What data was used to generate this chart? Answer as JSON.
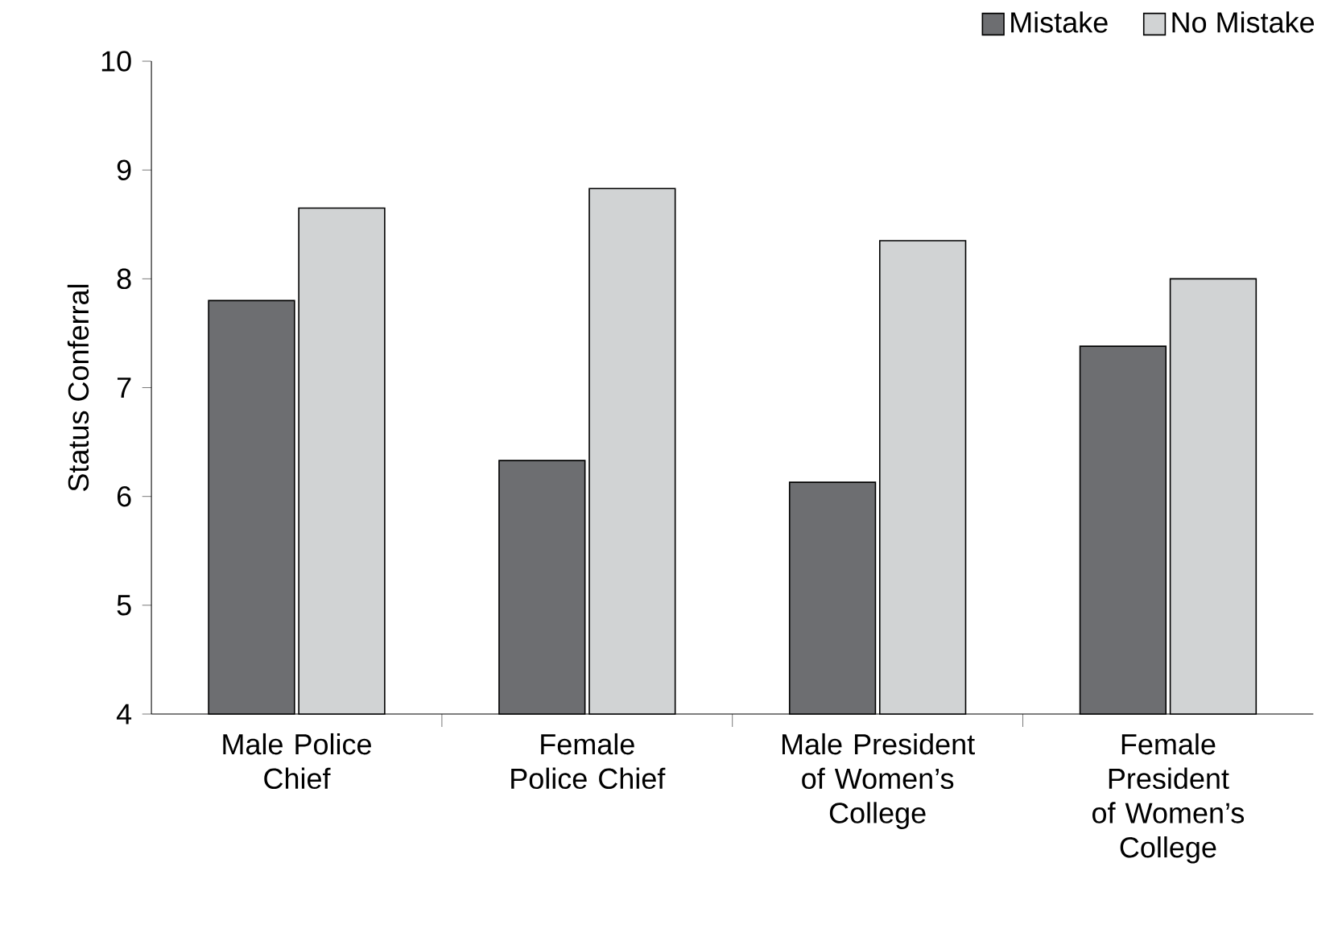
{
  "chart_data": {
    "type": "bar",
    "ylabel": "Status Conferral",
    "categories": [
      "Male Police Chief",
      "Female Police Chief",
      "Male President of Women’s College",
      "Female President of Women’s College"
    ],
    "series": [
      {
        "name": "Mistake",
        "color": "#6d6e71",
        "values": [
          7.8,
          6.33,
          6.13,
          7.38
        ]
      },
      {
        "name": "No Mistake",
        "color": "#d1d3d4",
        "values": [
          8.65,
          8.83,
          8.35,
          8.0
        ]
      }
    ],
    "ylim": [
      4,
      10
    ],
    "yticks": [
      4,
      5,
      6,
      7,
      8,
      9,
      10
    ],
    "grid": false,
    "legend": "top"
  }
}
